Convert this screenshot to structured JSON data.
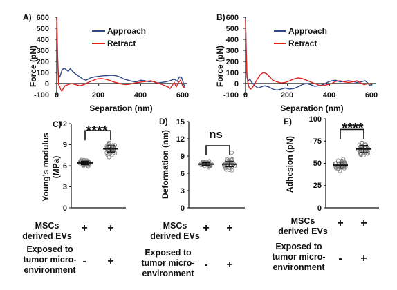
{
  "chart_data": [
    {
      "panel": "A)",
      "type": "line",
      "xlabel": "Separation (nm)",
      "ylabel": "Force (pN)",
      "xlim": [
        0,
        620
      ],
      "ylim": [
        -100,
        600
      ],
      "xticks": [
        "0",
        "200",
        "400",
        "600"
      ],
      "yticks": [
        "600",
        "500",
        "400",
        "300",
        "200",
        "100",
        "0",
        "-100"
      ],
      "legend_position": "top-right",
      "series": [
        {
          "name": "Approach",
          "color": "#2e4a8a",
          "points": [
            [
              0,
              600
            ],
            [
              3,
              300
            ],
            [
              8,
              80
            ],
            [
              15,
              60
            ],
            [
              25,
              120
            ],
            [
              35,
              140
            ],
            [
              45,
              125
            ],
            [
              55,
              110
            ],
            [
              65,
              135
            ],
            [
              80,
              100
            ],
            [
              95,
              80
            ],
            [
              110,
              60
            ],
            [
              125,
              40
            ],
            [
              140,
              30
            ],
            [
              160,
              50
            ],
            [
              180,
              60
            ],
            [
              200,
              65
            ],
            [
              220,
              70
            ],
            [
              240,
              72
            ],
            [
              260,
              75
            ],
            [
              280,
              72
            ],
            [
              300,
              60
            ],
            [
              320,
              40
            ],
            [
              340,
              30
            ],
            [
              360,
              20
            ],
            [
              380,
              15
            ],
            [
              400,
              30
            ],
            [
              420,
              25
            ],
            [
              440,
              15
            ],
            [
              460,
              20
            ],
            [
              480,
              5
            ],
            [
              500,
              10
            ],
            [
              520,
              15
            ],
            [
              540,
              25
            ],
            [
              560,
              40
            ],
            [
              575,
              20
            ],
            [
              585,
              60
            ],
            [
              595,
              55
            ],
            [
              610,
              -30
            ]
          ]
        },
        {
          "name": "Retract",
          "color": "#e0201b",
          "points": [
            [
              0,
              600
            ],
            [
              2,
              450
            ],
            [
              5,
              200
            ],
            [
              9,
              -10
            ],
            [
              15,
              -30
            ],
            [
              20,
              -60
            ],
            [
              25,
              -70
            ],
            [
              32,
              -40
            ],
            [
              40,
              -20
            ],
            [
              55,
              -10
            ],
            [
              70,
              0
            ],
            [
              90,
              -10
            ],
            [
              110,
              -20
            ],
            [
              130,
              -10
            ],
            [
              150,
              10
            ],
            [
              170,
              25
            ],
            [
              190,
              40
            ],
            [
              210,
              45
            ],
            [
              230,
              40
            ],
            [
              250,
              30
            ],
            [
              270,
              15
            ],
            [
              290,
              5
            ],
            [
              310,
              -5
            ],
            [
              330,
              -10
            ],
            [
              350,
              -5
            ],
            [
              370,
              5
            ],
            [
              390,
              10
            ],
            [
              410,
              15
            ],
            [
              430,
              20
            ],
            [
              450,
              25
            ],
            [
              470,
              10
            ],
            [
              490,
              0
            ],
            [
              510,
              -15
            ],
            [
              530,
              -30
            ],
            [
              540,
              -45
            ],
            [
              550,
              -20
            ],
            [
              560,
              10
            ],
            [
              570,
              -30
            ],
            [
              580,
              10
            ],
            [
              590,
              30
            ],
            [
              600,
              -20
            ],
            [
              610,
              -40
            ]
          ]
        }
      ]
    },
    {
      "panel": "B)",
      "type": "line",
      "xlabel": "Separation (nm)",
      "ylabel": "Force (pN)",
      "xlim": [
        0,
        620
      ],
      "ylim": [
        -100,
        600
      ],
      "xticks": [
        "0",
        "200",
        "400",
        "600"
      ],
      "yticks": [
        "600",
        "500",
        "400",
        "300",
        "200",
        "100",
        "0",
        "-100"
      ],
      "legend_position": "top-right",
      "series": [
        {
          "name": "Approach",
          "color": "#2e4a8a",
          "points": [
            [
              0,
              590
            ],
            [
              3,
              350
            ],
            [
              7,
              60
            ],
            [
              12,
              20
            ],
            [
              20,
              40
            ],
            [
              30,
              10
            ],
            [
              45,
              -20
            ],
            [
              60,
              -40
            ],
            [
              75,
              -30
            ],
            [
              90,
              -20
            ],
            [
              110,
              -30
            ],
            [
              130,
              -50
            ],
            [
              150,
              -60
            ],
            [
              170,
              -50
            ],
            [
              190,
              -40
            ],
            [
              210,
              -50
            ],
            [
              230,
              -45
            ],
            [
              250,
              -30
            ],
            [
              270,
              -10
            ],
            [
              290,
              0
            ],
            [
              310,
              -10
            ],
            [
              330,
              -25
            ],
            [
              350,
              -20
            ],
            [
              370,
              -10
            ],
            [
              390,
              10
            ],
            [
              410,
              25
            ],
            [
              430,
              30
            ],
            [
              450,
              15
            ],
            [
              470,
              20
            ],
            [
              490,
              25
            ],
            [
              510,
              20
            ],
            [
              530,
              10
            ],
            [
              550,
              15
            ],
            [
              570,
              25
            ],
            [
              580,
              10
            ],
            [
              590,
              -15
            ],
            [
              605,
              -10
            ]
          ]
        },
        {
          "name": "Retract",
          "color": "#e0201b",
          "points": [
            [
              0,
              580
            ],
            [
              3,
              300
            ],
            [
              7,
              70
            ],
            [
              12,
              0
            ],
            [
              18,
              -40
            ],
            [
              25,
              -50
            ],
            [
              35,
              -30
            ],
            [
              50,
              20
            ],
            [
              70,
              80
            ],
            [
              85,
              100
            ],
            [
              100,
              90
            ],
            [
              115,
              60
            ],
            [
              130,
              30
            ],
            [
              150,
              15
            ],
            [
              170,
              5
            ],
            [
              190,
              10
            ],
            [
              210,
              25
            ],
            [
              230,
              40
            ],
            [
              250,
              50
            ],
            [
              270,
              45
            ],
            [
              290,
              30
            ],
            [
              310,
              15
            ],
            [
              330,
              0
            ],
            [
              350,
              -15
            ],
            [
              370,
              -20
            ],
            [
              390,
              -10
            ],
            [
              410,
              0
            ],
            [
              430,
              20
            ],
            [
              450,
              25
            ],
            [
              470,
              15
            ],
            [
              490,
              10
            ],
            [
              510,
              15
            ],
            [
              530,
              25
            ],
            [
              550,
              5
            ],
            [
              565,
              -10
            ],
            [
              575,
              -5
            ],
            [
              585,
              0
            ],
            [
              600,
              -5
            ]
          ]
        }
      ]
    },
    {
      "panel": "C)",
      "type": "scatter",
      "ylabel": "Young's modulus (MPa)",
      "ylim": [
        0,
        12
      ],
      "yticks": [
        "0",
        "3",
        "6",
        "9",
        "12"
      ],
      "groups": [
        {
          "mean": 6.4,
          "sd": 0.25,
          "spread": 0.8
        },
        {
          "mean": 8.4,
          "sd": 0.45,
          "spread": 1.3
        }
      ],
      "significance": "****",
      "bracket_y": 11.0
    },
    {
      "panel": "D)",
      "type": "scatter",
      "ylabel": "Deformation (nm)",
      "ylim": [
        0,
        15
      ],
      "yticks": [
        "0",
        "3",
        "6",
        "9",
        "12",
        "15"
      ],
      "groups": [
        {
          "mean": 7.6,
          "sd": 0.25,
          "spread": 0.7
        },
        {
          "mean": 7.6,
          "sd": 0.45,
          "spread": 1.4,
          "outlier": 9.6
        }
      ],
      "significance": "ns",
      "bracket_y": 10.8
    },
    {
      "panel": "E)",
      "type": "scatter",
      "ylabel": "Adhesion (pN)",
      "ylim": [
        0,
        100
      ],
      "yticks": [
        "0",
        "25",
        "50",
        "75",
        "100"
      ],
      "groups": [
        {
          "mean": 48,
          "sd": 3.5,
          "spread": 9
        },
        {
          "mean": 66,
          "sd": 4,
          "spread": 11
        }
      ],
      "significance": "****",
      "bracket_y": 88
    }
  ],
  "conditions": {
    "row1_label": [
      "MSCs",
      "derived EVs"
    ],
    "row1_signs": [
      "+",
      "+"
    ],
    "row2_label": [
      "Exposed to",
      "tumor micro-",
      "environment"
    ],
    "row2_signs": [
      "-",
      "+"
    ]
  }
}
